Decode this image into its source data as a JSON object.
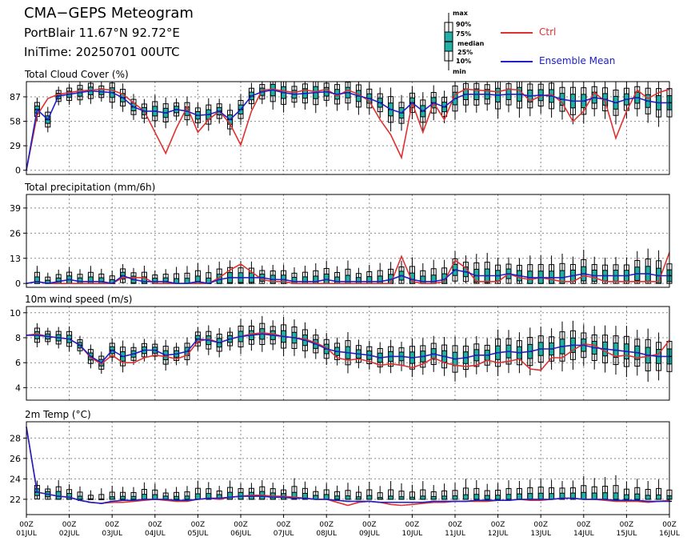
{
  "header": {
    "title": "CMA−GEPS Meteogram",
    "location": "PortBlair 11.67°N 92.72°E",
    "init_time": "IniTime: 20250701 00UTC"
  },
  "legend": {
    "box_labels": [
      "max",
      "90%",
      "75%",
      "median",
      "25%",
      "10%",
      "min"
    ],
    "ctrl": "Ctrl",
    "mean": "Ensemble Mean"
  },
  "colors": {
    "ctrl": "#e03030",
    "mean": "#2020c8",
    "box": "#20b0a8",
    "grid": "#888888"
  },
  "chart_data": [
    {
      "type": "line",
      "title": "Total Cloud Cover (%)",
      "ylim": [
        -5,
        105
      ],
      "yticks": [
        0,
        29,
        58,
        87
      ],
      "x_start": 0,
      "x_end": 60,
      "x_unit": "6h steps from 01JUL 00Z",
      "series": [
        {
          "name": "Ctrl",
          "values": [
            0,
            65,
            85,
            90,
            92,
            94,
            95,
            96,
            95,
            90,
            80,
            70,
            45,
            20,
            50,
            75,
            45,
            60,
            70,
            55,
            30,
            70,
            95,
            96,
            94,
            92,
            95,
            93,
            96,
            88,
            95,
            90,
            82,
            60,
            42,
            15,
            80,
            45,
            80,
            60,
            90,
            96,
            95,
            94,
            93,
            96,
            95,
            82,
            88,
            90,
            80,
            58,
            70,
            92,
            82,
            38,
            70,
            95,
            85,
            92,
            96
          ]
        },
        {
          "name": "Ensemble Mean",
          "values": [
            0,
            72,
            60,
            88,
            90,
            92,
            94,
            93,
            92,
            86,
            75,
            70,
            70,
            68,
            72,
            70,
            65,
            66,
            70,
            60,
            72,
            88,
            93,
            95,
            92,
            90,
            91,
            92,
            93,
            90,
            92,
            88,
            85,
            80,
            72,
            68,
            80,
            70,
            80,
            75,
            85,
            90,
            90,
            90,
            89,
            90,
            90,
            88,
            89,
            88,
            84,
            82,
            82,
            86,
            84,
            80,
            84,
            86,
            82,
            80,
            80
          ]
        }
      ]
    },
    {
      "type": "line",
      "title": "Total precipitation (mm/6h)",
      "ylim": [
        -2,
        46
      ],
      "yticks": [
        0,
        13,
        26,
        39
      ],
      "series": [
        {
          "name": "Ctrl",
          "values": [
            0,
            1,
            0,
            0,
            0,
            0,
            0,
            0,
            0,
            3,
            3,
            3,
            0,
            0,
            0,
            0,
            0,
            0,
            3,
            7,
            10,
            6,
            2,
            1,
            1,
            0,
            0,
            0,
            0,
            0,
            0,
            0,
            0,
            0,
            0,
            14,
            1,
            0,
            0,
            1,
            12,
            8,
            1,
            1,
            1,
            5,
            3,
            2,
            3,
            2,
            1,
            1,
            4,
            3,
            1,
            1,
            1,
            1,
            1,
            1,
            16
          ]
        },
        {
          "name": "Ensemble Mean",
          "values": [
            0,
            1,
            0,
            1,
            2,
            1,
            1,
            1,
            0,
            4,
            2,
            1,
            1,
            1,
            0,
            0,
            1,
            0,
            2,
            3,
            3,
            3,
            3,
            2,
            2,
            1,
            1,
            1,
            2,
            1,
            1,
            1,
            1,
            1,
            2,
            4,
            2,
            1,
            1,
            2,
            7,
            6,
            4,
            4,
            4,
            5,
            4,
            3,
            3,
            3,
            3,
            4,
            5,
            4,
            4,
            4,
            4,
            5,
            5,
            4,
            4
          ]
        }
      ]
    },
    {
      "type": "line",
      "title": "10m wind speed (m/s)",
      "ylim": [
        3,
        10.5
      ],
      "yticks": [
        4,
        6,
        8,
        10
      ],
      "series": [
        {
          "name": "Ctrl",
          "values": [
            8.2,
            8.3,
            8.1,
            8.0,
            7.9,
            7.4,
            6.4,
            5.9,
            6.6,
            6.0,
            6.0,
            6.4,
            6.6,
            6.5,
            6.3,
            6.6,
            7.7,
            7.9,
            7.6,
            7.9,
            8.1,
            8.3,
            8.4,
            8.3,
            8.1,
            8.0,
            7.9,
            7.6,
            7.2,
            6.4,
            6.2,
            6.3,
            6.1,
            5.8,
            5.9,
            5.8,
            5.6,
            5.9,
            6.4,
            6.0,
            5.8,
            5.7,
            5.8,
            6.2,
            6.0,
            6.1,
            6.3,
            5.5,
            5.4,
            6.4,
            6.4,
            7.0,
            7.5,
            7.4,
            6.9,
            6.5,
            6.6,
            6.4,
            6.5,
            6.7,
            7.8
          ]
        },
        {
          "name": "Ensemble Mean",
          "values": [
            8.2,
            8.2,
            8.1,
            8.0,
            7.9,
            7.4,
            6.5,
            6.0,
            7.0,
            6.5,
            6.7,
            7.0,
            7.0,
            6.6,
            6.7,
            6.9,
            7.9,
            7.8,
            7.6,
            7.9,
            8.1,
            8.2,
            8.3,
            8.2,
            8.1,
            8.0,
            7.8,
            7.5,
            7.1,
            6.9,
            6.8,
            6.7,
            6.6,
            6.4,
            6.5,
            6.5,
            6.4,
            6.5,
            6.7,
            6.5,
            6.3,
            6.4,
            6.6,
            6.6,
            6.8,
            6.9,
            6.8,
            6.9,
            7.1,
            7.1,
            7.3,
            7.4,
            7.4,
            7.2,
            7.1,
            7.0,
            6.9,
            6.8,
            6.6,
            6.5,
            6.5
          ]
        }
      ]
    },
    {
      "type": "line",
      "title": "2m Temp (°C)",
      "ylim": [
        20.5,
        29.6
      ],
      "yticks": [
        22,
        24,
        26,
        28
      ],
      "x_tick_labels": [
        [
          "00Z",
          "01JUL"
        ],
        [
          "00Z",
          "02JUL"
        ],
        [
          "00Z",
          "03JUL"
        ],
        [
          "00Z",
          "04JUL"
        ],
        [
          "00Z",
          "05JUL"
        ],
        [
          "00Z",
          "06JUL"
        ],
        [
          "00Z",
          "07JUL"
        ],
        [
          "00Z",
          "08JUL"
        ],
        [
          "00Z",
          "09JUL"
        ],
        [
          "00Z",
          "10JUL"
        ],
        [
          "00Z",
          "11JUL"
        ],
        [
          "00Z",
          "12JUL"
        ],
        [
          "00Z",
          "13JUL"
        ],
        [
          "00Z",
          "14JUL"
        ],
        [
          "00Z",
          "15JUL"
        ],
        [
          "00Z",
          "16JUL"
        ]
      ],
      "series": [
        {
          "name": "Ctrl",
          "values": [
            29.1,
            22.7,
            22.5,
            22.3,
            22.2,
            21.9,
            21.7,
            21.6,
            21.7,
            21.7,
            21.8,
            21.9,
            22.0,
            21.9,
            21.8,
            21.8,
            22.0,
            22.1,
            22.0,
            22.2,
            22.3,
            22.4,
            22.4,
            22.3,
            22.3,
            22.2,
            22.1,
            22.0,
            22.0,
            21.7,
            21.4,
            21.7,
            21.8,
            21.7,
            21.5,
            21.4,
            21.5,
            21.6,
            21.7,
            21.7,
            21.8,
            21.8,
            21.8,
            21.8,
            21.9,
            21.9,
            22.0,
            21.9,
            21.9,
            22.0,
            22.1,
            22.1,
            22.0,
            22.0,
            21.9,
            21.8,
            21.8,
            21.8,
            21.7,
            21.8,
            21.9
          ]
        },
        {
          "name": "Ensemble Mean",
          "values": [
            29.1,
            22.7,
            22.5,
            22.3,
            22.2,
            21.9,
            21.7,
            21.6,
            21.8,
            21.9,
            21.9,
            22.0,
            22.0,
            22.0,
            21.9,
            21.9,
            22.0,
            22.1,
            22.1,
            22.2,
            22.3,
            22.3,
            22.3,
            22.2,
            22.2,
            22.1,
            22.1,
            22.0,
            22.0,
            21.9,
            21.8,
            21.8,
            21.8,
            21.7,
            21.7,
            21.7,
            21.7,
            21.7,
            21.8,
            21.8,
            21.8,
            21.8,
            21.9,
            21.9,
            21.9,
            21.9,
            22.0,
            22.0,
            22.0,
            22.0,
            22.1,
            22.1,
            22.0,
            22.0,
            22.0,
            21.9,
            21.9,
            21.9,
            21.8,
            21.8,
            21.8
          ]
        }
      ]
    }
  ]
}
